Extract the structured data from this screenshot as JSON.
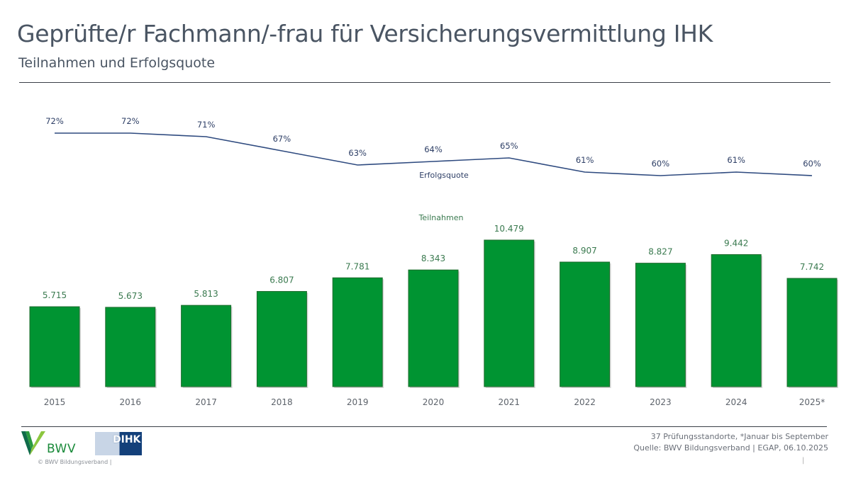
{
  "header": {
    "title": "Geprüfte/r Fachmann/-frau für Versicherungsvermittlung IHK",
    "subtitle": "Teilnahmen und Erfolgsquote"
  },
  "footer": {
    "note_line1": "37 Prüfungsstandorte, *Januar bis September",
    "note_line2": "Quelle: BWV Bildungsverband | EGAP, 06.10.2025",
    "pipe": "|",
    "copyright": "© BWV Bildungsverband |",
    "logo_bwv_text": "BWV",
    "logo_dihk_text": "DIHK"
  },
  "colors": {
    "bar": "#009432",
    "bar_label": "#3a7a4f",
    "line": "#2e4a7f",
    "line_label": "#2e3f66",
    "axis_label": "#5d636b",
    "bwv_green": "#1a8a3a",
    "dihk_blue": "#13407a"
  },
  "chart_data": {
    "type": "bar",
    "title": "Teilnahmen und Erfolgsquote",
    "xlabel": "",
    "ylabel": "",
    "grid": false,
    "categories": [
      "2015",
      "2016",
      "2017",
      "2018",
      "2019",
      "2020",
      "2021",
      "2022",
      "2023",
      "2024",
      "2025*"
    ],
    "series": [
      {
        "name": "Teilnahmen",
        "type": "bar",
        "values": [
          5715,
          5673,
          5813,
          6807,
          7781,
          8343,
          10479,
          8907,
          8827,
          9442,
          7742
        ],
        "labels": [
          "5.715",
          "5.673",
          "5.813",
          "6.807",
          "7.781",
          "8.343",
          "10.479",
          "8.907",
          "8.827",
          "9.442",
          "7.742"
        ],
        "label_position": "between-series"
      },
      {
        "name": "Erfolgsquote",
        "type": "line",
        "values": [
          72,
          72,
          71,
          67,
          63,
          64,
          65,
          61,
          60,
          61,
          60
        ],
        "labels": [
          "72%",
          "72%",
          "71%",
          "67%",
          "63%",
          "64%",
          "65%",
          "61%",
          "60%",
          "61%",
          "60%"
        ],
        "unit": "%",
        "label_position": "below-line"
      }
    ],
    "ylim_bar": [
      0,
      11000
    ],
    "ylim_line": [
      55,
      75
    ]
  }
}
